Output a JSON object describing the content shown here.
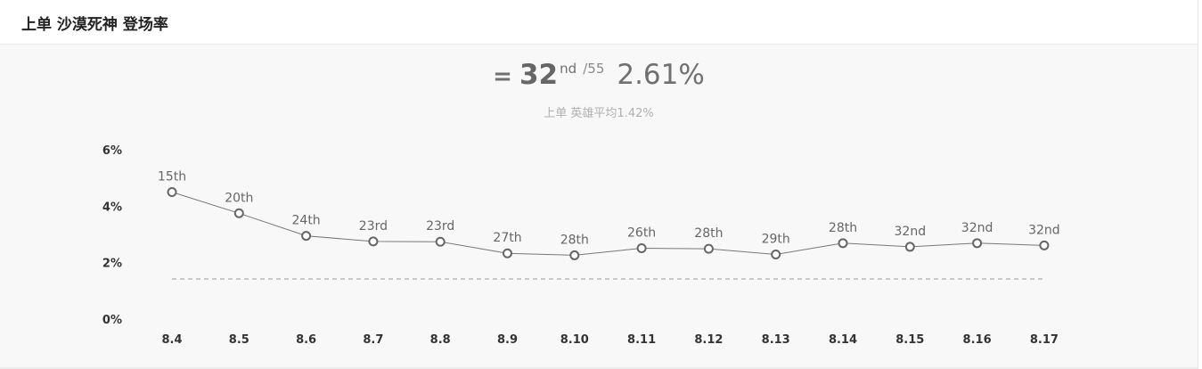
{
  "header": {
    "title": "上单 沙漠死神 登场率"
  },
  "summary": {
    "trend_symbol": "=",
    "rank": "32",
    "rank_suffix": "nd",
    "rank_total": "/55",
    "rate": "2.61%",
    "average_text": "上单 英雄平均1.42%"
  },
  "colors": {
    "line": "#777777",
    "marker_fill": "#ffffff",
    "marker_stroke": "#666666",
    "average_line": "#999999",
    "panel_background": "#f8f8f8"
  },
  "chart_data": {
    "type": "line",
    "title": "",
    "xlabel": "",
    "ylabel": "",
    "categories": [
      "8.4",
      "8.5",
      "8.6",
      "8.7",
      "8.8",
      "8.9",
      "8.10",
      "8.11",
      "8.12",
      "8.13",
      "8.14",
      "8.15",
      "8.16",
      "8.17"
    ],
    "series": [
      {
        "values": [
          4.5,
          3.75,
          2.95,
          2.75,
          2.74,
          2.33,
          2.26,
          2.51,
          2.49,
          2.29,
          2.69,
          2.56,
          2.69,
          2.61
        ],
        "point_labels": [
          "15th",
          "20th",
          "24th",
          "23rd",
          "23rd",
          "27th",
          "28th",
          "26th",
          "28th",
          "29th",
          "28th",
          "32nd",
          "32nd",
          "32nd"
        ]
      }
    ],
    "reference_line": {
      "value": 1.42,
      "style": "dashed"
    },
    "yticks": [
      "0%",
      "2%",
      "4%",
      "6%"
    ],
    "ylim": [
      0,
      6
    ],
    "grid": false,
    "legend": "none"
  }
}
